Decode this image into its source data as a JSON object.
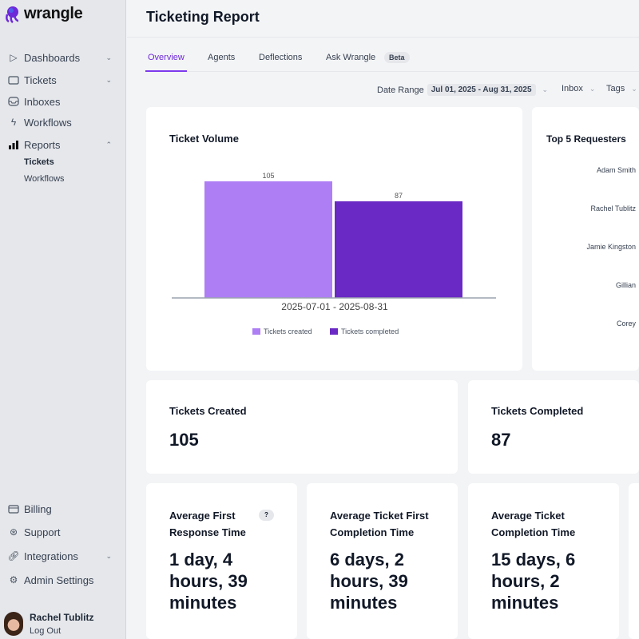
{
  "brand": {
    "name": "wrangle",
    "color": "#6d28d9"
  },
  "sidebar": {
    "items": [
      {
        "label": "Dashboards",
        "icon": "play-icon",
        "chevron": "down"
      },
      {
        "label": "Tickets",
        "icon": "ticket-icon",
        "chevron": "down"
      },
      {
        "label": "Inboxes",
        "icon": "inbox-icon"
      },
      {
        "label": "Workflows",
        "icon": "lightning-icon"
      },
      {
        "label": "Reports",
        "icon": "bar-chart-icon",
        "chevron": "up",
        "active": true
      }
    ],
    "sub_items": [
      {
        "label": "Tickets",
        "active": true
      },
      {
        "label": "Workflows"
      }
    ],
    "bottom_items": [
      {
        "label": "Billing",
        "icon": "credit-card-icon"
      },
      {
        "label": "Support",
        "icon": "lifebuoy-icon"
      },
      {
        "label": "Integrations",
        "icon": "link-icon",
        "chevron": "down"
      },
      {
        "label": "Admin Settings",
        "icon": "gear-icon"
      }
    ],
    "user": {
      "name": "Rachel Tublitz",
      "logout": "Log Out"
    }
  },
  "header": {
    "title": "Ticketing Report"
  },
  "tabs": [
    {
      "label": "Overview",
      "active": true
    },
    {
      "label": "Agents"
    },
    {
      "label": "Deflections"
    },
    {
      "label": "Ask Wrangle",
      "badge": "Beta"
    }
  ],
  "filters": {
    "date_label": "Date Range",
    "date_value": "Jul 01, 2025 - Aug 31, 2025",
    "inbox": "Inbox",
    "tags": "Tags"
  },
  "ticket_volume": {
    "title": "Ticket Volume"
  },
  "chart_data": {
    "type": "bar",
    "title": "Ticket Volume",
    "categories": [
      "2025-07-01 - 2025-08-31"
    ],
    "series": [
      {
        "name": "Tickets created",
        "values": [
          105
        ],
        "color": "#ae7ef5"
      },
      {
        "name": "Tickets completed",
        "values": [
          87
        ],
        "color": "#6a29c4"
      }
    ],
    "data_labels": [
      "105",
      "87"
    ],
    "legend": "bottom",
    "grid": false
  },
  "top_requesters": {
    "title": "Top 5 Requesters",
    "names": [
      "Adam Smith",
      "Rachel Tublitz",
      "Jamie Kingston",
      "Gillian",
      "Corey"
    ]
  },
  "stats": [
    {
      "title": "Tickets Created",
      "value": "105"
    },
    {
      "title": "Tickets Completed",
      "value": "87"
    }
  ],
  "metrics": [
    {
      "title": "Average First Response Time",
      "value": "1 day, 4 hours, 39 minutes",
      "help": "?"
    },
    {
      "title": "Average Ticket First Completion Time",
      "value": "6 days, 2 hours, 39 minutes"
    },
    {
      "title": "Average Ticket Completion Time",
      "value": "15 days, 6 hours, 2 minutes"
    }
  ]
}
